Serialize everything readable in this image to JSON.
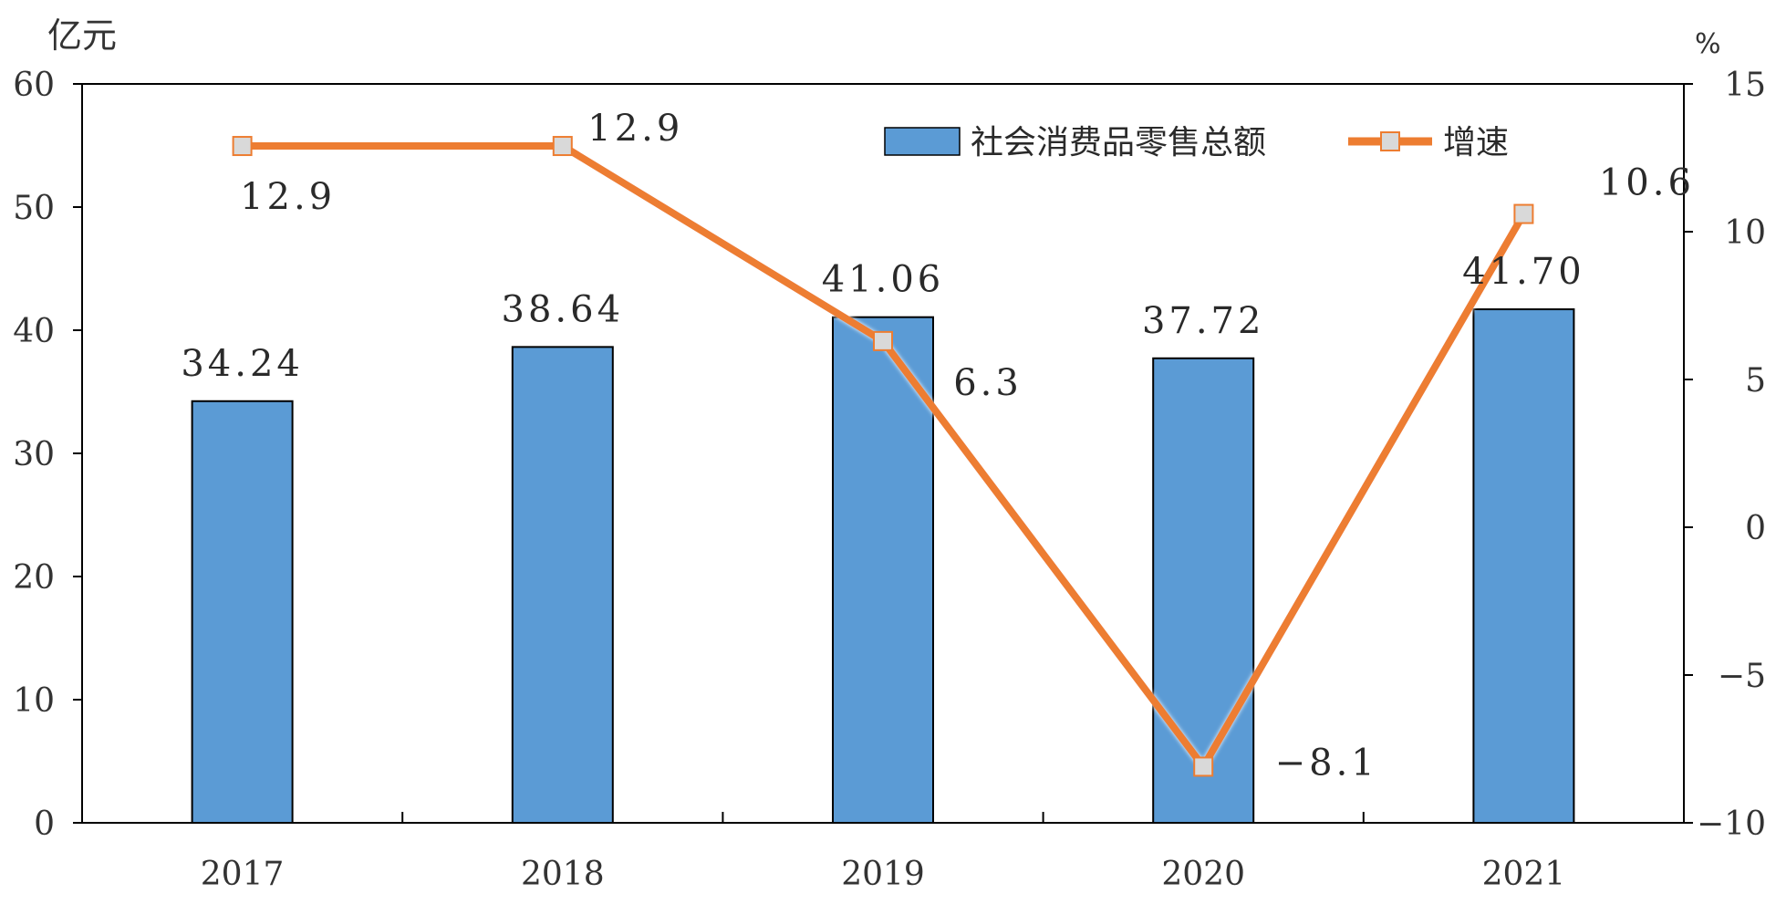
{
  "chart_data": {
    "type": "bar+line",
    "categories": [
      "2017",
      "2018",
      "2019",
      "2020",
      "2021"
    ],
    "series": [
      {
        "name": "社会消费品零售总额",
        "type": "bar",
        "axis": "left",
        "values": [
          34.24,
          38.64,
          41.06,
          37.72,
          41.7
        ],
        "labels": [
          "34.24",
          "38.64",
          "41.06",
          "37.72",
          "41.70"
        ]
      },
      {
        "name": "增速",
        "type": "line",
        "axis": "right",
        "values": [
          12.9,
          12.9,
          6.3,
          -8.1,
          10.6
        ],
        "labels": [
          "12.9",
          "12.9",
          "6.3",
          "−8.1",
          "10.6"
        ]
      }
    ],
    "ylabel_left": "亿元",
    "ylabel_right": "%",
    "ylim_left": [
      0,
      60
    ],
    "ylim_right": [
      -10,
      15
    ],
    "yticks_left": [
      "0",
      "10",
      "20",
      "30",
      "40",
      "50",
      "60"
    ],
    "yticks_right": [
      "−10",
      "−5",
      "0",
      "5",
      "10",
      "15"
    ],
    "legend_position": "top-right",
    "grid": false,
    "colors": {
      "bar": "#5b9bd5",
      "line": "#ed7d31",
      "marker_fill": "#d9d9d9",
      "axis": "#000000"
    }
  }
}
